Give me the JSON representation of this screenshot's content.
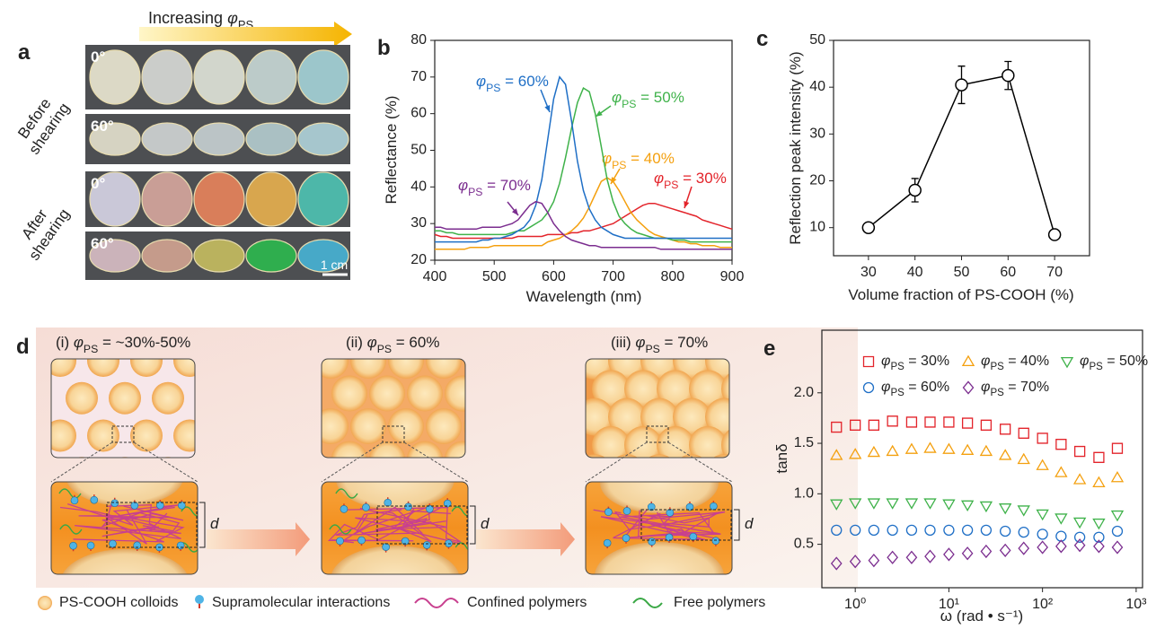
{
  "panels": {
    "a": {
      "letter": "a",
      "arrow_label": "Increasing φPS",
      "groups": [
        "Before shearing",
        "After shearing"
      ],
      "angles": [
        "0°",
        "60°",
        "0°",
        "60°"
      ],
      "scale_bar": "1 cm"
    },
    "d": {
      "letter": "d",
      "stages": [
        "(i) φPS = ~30%-50%",
        "(ii) φPS = 60%",
        "(iii) φPS = 70%"
      ],
      "spacing_label": "d",
      "legend": [
        "PS-COOH colloids",
        "Supramolecular interactions",
        "Confined polymers",
        "Free polymers"
      ]
    }
  },
  "chart_data": [
    {
      "type": "line",
      "panel": "b",
      "xlabel": "Wavelength   (nm)",
      "ylabel": "Reflectance (%)",
      "xlim": [
        400,
        900
      ],
      "xticks": [
        400,
        500,
        600,
        700,
        800,
        900
      ],
      "ylim": [
        20,
        80
      ],
      "yticks": [
        20,
        30,
        40,
        50,
        60,
        70,
        80
      ],
      "x": [
        400,
        410,
        420,
        430,
        440,
        450,
        460,
        470,
        480,
        490,
        500,
        510,
        520,
        530,
        540,
        550,
        560,
        570,
        580,
        590,
        600,
        610,
        620,
        630,
        640,
        650,
        660,
        670,
        680,
        690,
        700,
        710,
        720,
        730,
        740,
        750,
        760,
        770,
        780,
        790,
        800,
        810,
        820,
        830,
        840,
        850,
        860,
        870,
        880,
        890,
        900
      ],
      "series": [
        {
          "name": "φPS = 30%",
          "color": "#e3242b",
          "values": [
            27,
            26.5,
            26.5,
            26,
            26,
            26,
            26,
            26,
            26,
            26,
            26,
            26,
            26,
            26,
            26.5,
            26.5,
            26.5,
            26.5,
            26.5,
            27,
            27,
            27,
            27,
            27.5,
            27.5,
            28,
            28,
            28.5,
            29,
            29.5,
            30,
            31,
            32,
            33,
            34,
            35,
            35.5,
            35.5,
            35,
            34.5,
            34,
            33.5,
            33,
            32.5,
            32,
            31,
            30.5,
            30,
            29.5,
            29,
            28.5
          ]
        },
        {
          "name": "φPS = 40%",
          "color": "#f4a00f",
          "values": [
            23,
            23,
            23,
            23,
            23,
            23,
            23.5,
            23.5,
            23.5,
            23.5,
            24,
            24,
            24,
            24,
            24,
            24,
            24,
            24,
            24,
            25,
            25.5,
            26,
            27,
            28,
            29.5,
            31.5,
            34.5,
            38,
            41.5,
            42.5,
            41.5,
            39,
            36,
            33,
            31,
            29.5,
            28,
            27,
            26.5,
            26,
            25.5,
            25,
            25,
            24.5,
            24.5,
            24,
            24,
            24,
            23.5,
            23.5,
            23.5
          ]
        },
        {
          "name": "φPS = 50%",
          "color": "#3fb24a",
          "values": [
            28,
            28,
            27.5,
            27.5,
            27,
            27,
            27,
            27,
            27,
            27,
            27,
            27,
            27,
            27.5,
            28,
            28,
            29,
            30,
            31,
            33,
            36,
            41,
            48,
            56,
            63,
            67,
            66,
            60,
            51,
            42,
            36,
            32,
            30,
            28.5,
            27.5,
            27,
            26.5,
            26,
            26,
            26,
            25.5,
            25.5,
            25.5,
            25,
            25,
            25,
            25,
            25,
            25,
            25,
            25
          ]
        },
        {
          "name": "φPS = 60%",
          "color": "#1f6fc6",
          "values": [
            25,
            25,
            25,
            25,
            25,
            25,
            25,
            25,
            25.5,
            25.5,
            26,
            26,
            26.5,
            27,
            28,
            29,
            31,
            35,
            42,
            53,
            64,
            70,
            68,
            58,
            47,
            39,
            34,
            31,
            29,
            28,
            27,
            26.5,
            26,
            26,
            26,
            26,
            26,
            26,
            26,
            26,
            26,
            26,
            26,
            26,
            26,
            26,
            26,
            26,
            26,
            26,
            26
          ]
        },
        {
          "name": "φPS = 70%",
          "color": "#7b2d8f",
          "values": [
            29,
            29,
            28.5,
            28.5,
            28.5,
            28.5,
            28.5,
            28.5,
            29,
            29,
            29,
            29,
            29.5,
            30,
            31,
            33,
            35,
            36,
            35.5,
            33,
            30,
            28,
            26.5,
            25.5,
            25,
            24.5,
            24,
            24,
            23.5,
            23.5,
            23.5,
            23.5,
            23.5,
            23.5,
            23.5,
            23.5,
            23.5,
            23.5,
            23,
            23,
            23,
            23,
            23,
            23,
            23,
            23,
            23,
            23,
            23,
            23,
            23
          ]
        }
      ]
    },
    {
      "type": "errorbar",
      "panel": "c",
      "xlabel": "Volume fraction of PS-COOH (%)",
      "ylabel": "Reflection peak intensity (%)",
      "xlim": [
        22.5,
        77.5
      ],
      "xticks": [
        30,
        40,
        50,
        60,
        70
      ],
      "ylim": [
        4,
        50
      ],
      "yticks": [
        10,
        20,
        30,
        40,
        50
      ],
      "x": [
        30,
        40,
        50,
        60,
        70
      ],
      "series": [
        {
          "color": "#000000",
          "values": [
            10,
            18,
            40.5,
            42.5,
            8.5
          ],
          "errors": [
            0.5,
            2.5,
            4,
            3,
            1
          ]
        }
      ]
    },
    {
      "type": "scatter",
      "panel": "e",
      "xlabel": "ω (rad • s⁻¹)",
      "ylabel": "tanδ",
      "xscale": "log",
      "xlim": [
        0.44,
        1170
      ],
      "xticks": [
        {
          "value": 1,
          "label": "10⁰"
        },
        {
          "value": 10,
          "label": "10¹"
        },
        {
          "value": 100,
          "label": "10²"
        },
        {
          "value": 1000,
          "label": "10³"
        }
      ],
      "ylim": [
        0.07,
        2.62
      ],
      "yticks": [
        {
          "value": 0.5,
          "label": "0.5"
        },
        {
          "value": 1,
          "label": "1.0"
        },
        {
          "value": 1.5,
          "label": "1.5"
        },
        {
          "value": 2,
          "label": "2.0"
        }
      ],
      "x": [
        0.63,
        1,
        1.58,
        2.5,
        4,
        6.3,
        10,
        15.8,
        25,
        40,
        63,
        100,
        158,
        250,
        400,
        630
      ],
      "series": [
        {
          "name": "φPS = 30%",
          "color": "#e3242b",
          "marker": "square",
          "values": [
            1.66,
            1.68,
            1.68,
            1.72,
            1.71,
            1.71,
            1.71,
            1.7,
            1.68,
            1.64,
            1.6,
            1.55,
            1.49,
            1.42,
            1.36,
            1.45
          ]
        },
        {
          "name": "φPS = 40%",
          "color": "#f4a00f",
          "marker": "triangle",
          "values": [
            1.38,
            1.39,
            1.41,
            1.42,
            1.44,
            1.45,
            1.44,
            1.43,
            1.42,
            1.38,
            1.34,
            1.28,
            1.21,
            1.14,
            1.11,
            1.16
          ]
        },
        {
          "name": "φPS = 50%",
          "color": "#3fb24a",
          "marker": "triangle-down",
          "values": [
            0.9,
            0.91,
            0.91,
            0.91,
            0.91,
            0.91,
            0.9,
            0.89,
            0.88,
            0.86,
            0.84,
            0.8,
            0.76,
            0.72,
            0.71,
            0.79
          ]
        },
        {
          "name": "φPS = 60%",
          "color": "#1f6fc6",
          "marker": "circle",
          "values": [
            0.64,
            0.64,
            0.64,
            0.64,
            0.64,
            0.64,
            0.64,
            0.64,
            0.64,
            0.63,
            0.62,
            0.6,
            0.58,
            0.57,
            0.57,
            0.63
          ]
        },
        {
          "name": "φPS = 70%",
          "color": "#7b2d8f",
          "marker": "diamond",
          "values": [
            0.31,
            0.33,
            0.34,
            0.37,
            0.37,
            0.38,
            0.4,
            0.41,
            0.43,
            0.44,
            0.46,
            0.47,
            0.48,
            0.49,
            0.48,
            0.47
          ]
        }
      ]
    }
  ]
}
